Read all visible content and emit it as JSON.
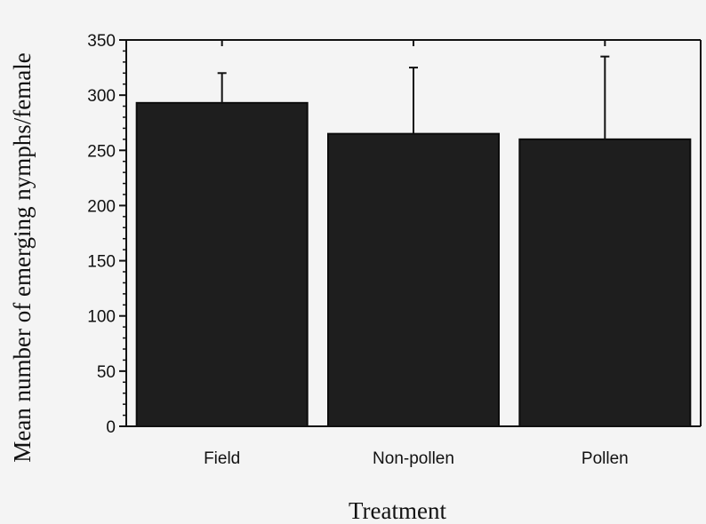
{
  "chart_data": {
    "type": "bar",
    "categories": [
      "Field",
      "Non-pollen",
      "Pollen"
    ],
    "values": [
      293,
      265,
      260
    ],
    "error_upper": [
      320,
      325,
      335
    ],
    "xlabel": "Treatment",
    "ylabel": "Mean number of emerging nymphs/female",
    "ylim": [
      0,
      350
    ],
    "yticks": [
      0,
      50,
      100,
      150,
      200,
      250,
      300,
      350
    ],
    "grid": false,
    "legend": "none",
    "colors": {
      "bar": "#1e1e1e",
      "axis": "#111111",
      "background": "#f4f4f4"
    }
  }
}
